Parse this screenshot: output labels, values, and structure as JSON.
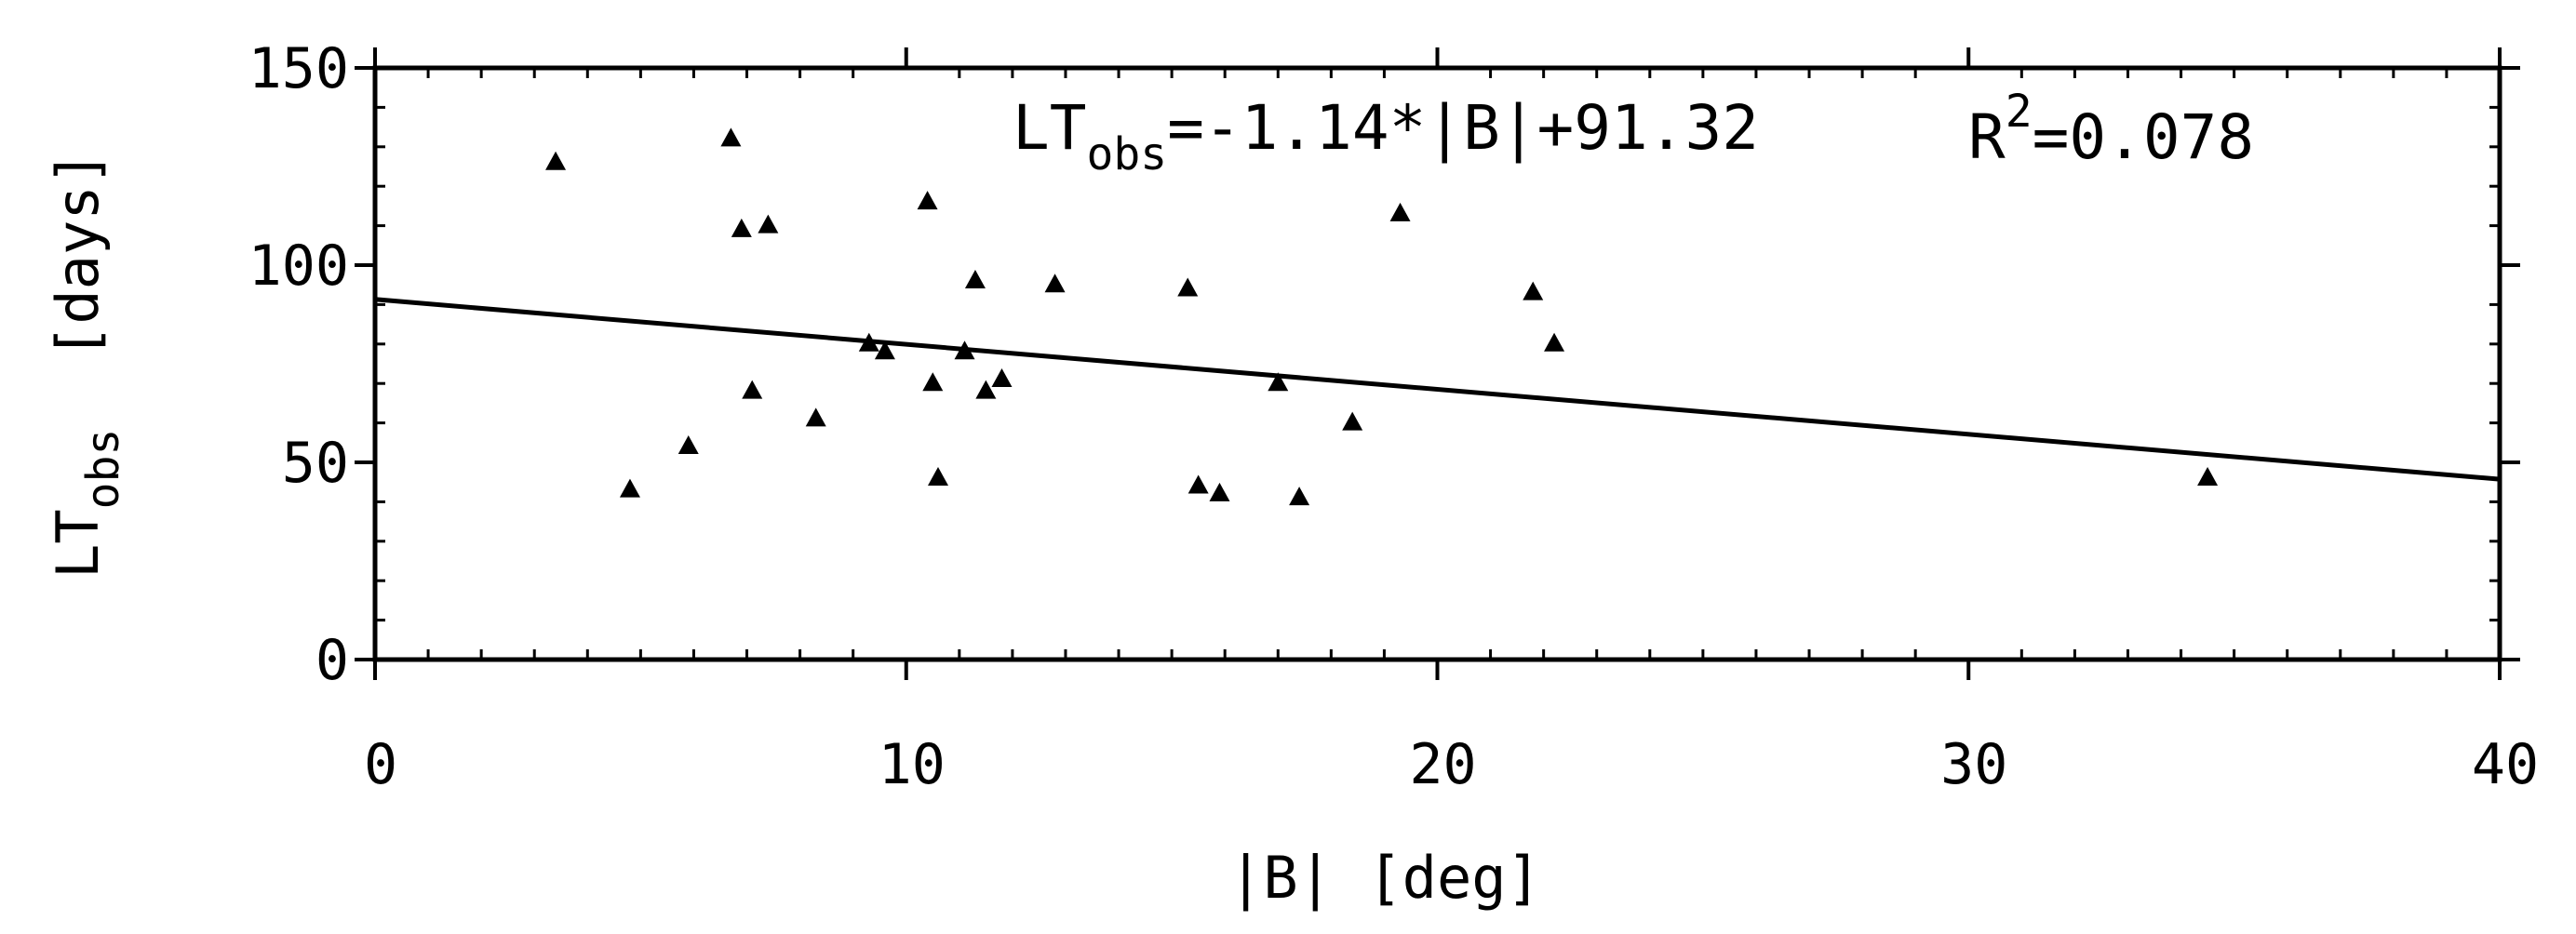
{
  "chart_data": {
    "type": "scatter",
    "title": "",
    "xlabel": "|B| [deg]",
    "ylabel": {
      "main": "LT",
      "sub": "obs",
      "unit": "[days]"
    },
    "xlim": [
      0,
      40
    ],
    "ylim": [
      0,
      150
    ],
    "xticks": [
      0,
      10,
      20,
      30,
      40
    ],
    "yticks": [
      0,
      50,
      100,
      150
    ],
    "xtick_labels": [
      "0",
      "10",
      "20",
      "30",
      "40"
    ],
    "ytick_labels": [
      "0",
      "50",
      "100",
      "150"
    ],
    "grid": false,
    "marker": "triangle",
    "points": [
      {
        "x": 3.4,
        "y": 126
      },
      {
        "x": 4.8,
        "y": 43
      },
      {
        "x": 5.9,
        "y": 54
      },
      {
        "x": 6.7,
        "y": 132
      },
      {
        "x": 6.9,
        "y": 109
      },
      {
        "x": 7.1,
        "y": 68
      },
      {
        "x": 7.4,
        "y": 110
      },
      {
        "x": 8.3,
        "y": 61
      },
      {
        "x": 9.3,
        "y": 80
      },
      {
        "x": 9.6,
        "y": 78
      },
      {
        "x": 10.4,
        "y": 116
      },
      {
        "x": 10.5,
        "y": 70
      },
      {
        "x": 10.6,
        "y": 46
      },
      {
        "x": 11.1,
        "y": 78
      },
      {
        "x": 11.3,
        "y": 96
      },
      {
        "x": 11.5,
        "y": 68
      },
      {
        "x": 11.8,
        "y": 71
      },
      {
        "x": 12.8,
        "y": 95
      },
      {
        "x": 15.3,
        "y": 94
      },
      {
        "x": 15.5,
        "y": 44
      },
      {
        "x": 15.9,
        "y": 42
      },
      {
        "x": 17.0,
        "y": 70
      },
      {
        "x": 17.4,
        "y": 41
      },
      {
        "x": 18.4,
        "y": 60
      },
      {
        "x": 19.3,
        "y": 113
      },
      {
        "x": 21.8,
        "y": 93
      },
      {
        "x": 22.2,
        "y": 80
      },
      {
        "x": 34.5,
        "y": 46
      }
    ],
    "fit": {
      "slope": -1.14,
      "intercept": 91.32
    },
    "annotation": {
      "lhs_main": "LT",
      "lhs_sub": "obs",
      "rhs": "=-1.14*|B|+91.32",
      "r_main": "R",
      "r_sup": "2",
      "r_rest": "=0.078"
    }
  }
}
